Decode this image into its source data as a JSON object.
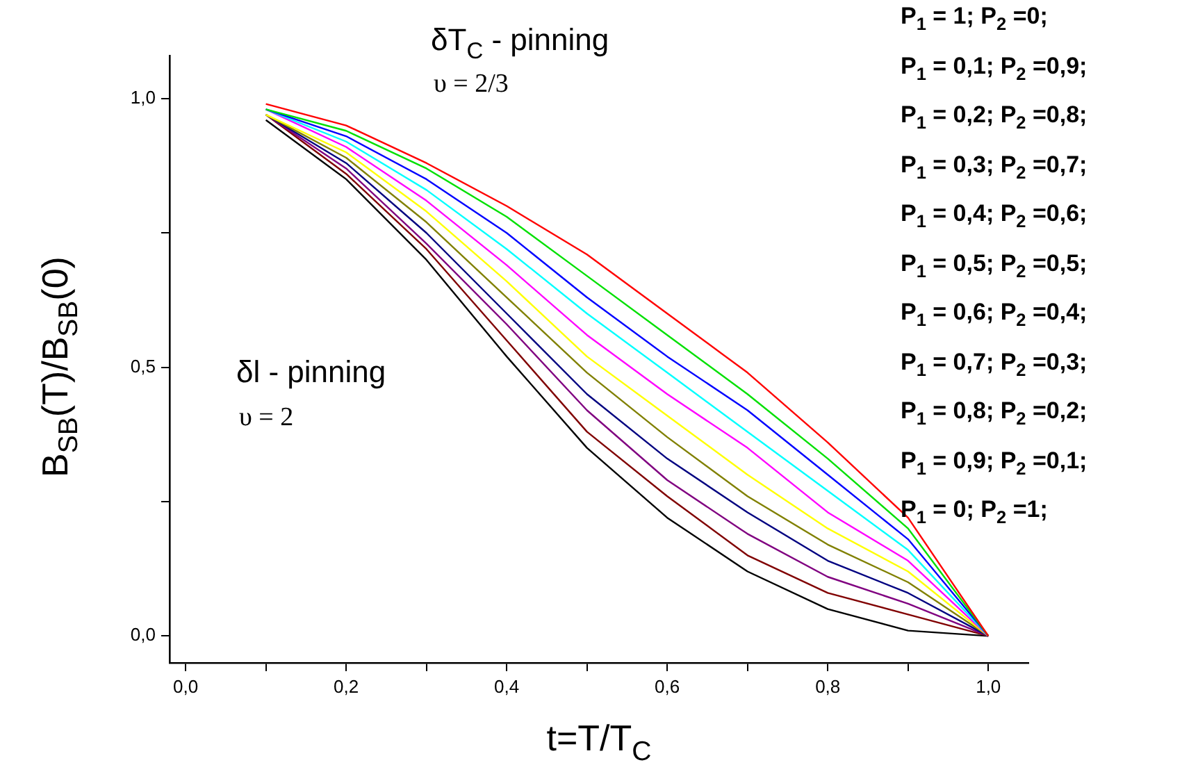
{
  "chart_data": {
    "type": "line",
    "xlabel": "t=T/T$_{C}$",
    "ylabel": "B$_{SB}$(T)/B$_{SB}$(0)",
    "x": [
      0.1,
      0.2,
      0.3,
      0.4,
      0.5,
      0.6,
      0.7,
      0.8,
      0.9,
      1.0
    ],
    "xlim": [
      -0.02,
      1.05
    ],
    "ylim": [
      -0.05,
      1.08
    ],
    "xticks": [
      {
        "value": 0,
        "label": "0,0"
      },
      {
        "value": 0.1,
        "label": null
      },
      {
        "value": 0.2,
        "label": "0,2"
      },
      {
        "value": 0.3,
        "label": null
      },
      {
        "value": 0.4,
        "label": "0,4"
      },
      {
        "value": 0.5,
        "label": null
      },
      {
        "value": 0.6,
        "label": "0,6"
      },
      {
        "value": 0.7,
        "label": null
      },
      {
        "value": 0.8,
        "label": "0,8"
      },
      {
        "value": 0.9,
        "label": null
      },
      {
        "value": 1.0,
        "label": "1,0"
      }
    ],
    "yticks": [
      {
        "value": 0,
        "label": "0,0"
      },
      {
        "value": 0.25,
        "label": null
      },
      {
        "value": 0.5,
        "label": "0,5"
      },
      {
        "value": 0.75,
        "label": null
      },
      {
        "value": 1.0,
        "label": "1,0"
      }
    ],
    "marker": "none",
    "line_style": "solid",
    "series": [
      {
        "color": "#ff0000",
        "values": [
          0.99,
          0.95,
          0.88,
          0.8,
          0.71,
          0.6,
          0.49,
          0.36,
          0.22,
          0
        ]
      },
      {
        "color": "#00e000",
        "values": [
          0.98,
          0.94,
          0.87,
          0.78,
          0.67,
          0.56,
          0.45,
          0.33,
          0.2,
          0
        ]
      },
      {
        "color": "#0000ff",
        "values": [
          0.98,
          0.93,
          0.85,
          0.75,
          0.63,
          0.52,
          0.42,
          0.3,
          0.18,
          0
        ]
      },
      {
        "color": "#00ffff",
        "values": [
          0.98,
          0.92,
          0.83,
          0.72,
          0.6,
          0.49,
          0.38,
          0.27,
          0.16,
          0
        ]
      },
      {
        "color": "#ff00ff",
        "values": [
          0.98,
          0.91,
          0.81,
          0.69,
          0.56,
          0.45,
          0.35,
          0.23,
          0.14,
          0
        ]
      },
      {
        "color": "#ffff00",
        "values": [
          0.97,
          0.9,
          0.79,
          0.66,
          0.52,
          0.41,
          0.3,
          0.2,
          0.12,
          0
        ]
      },
      {
        "color": "#808000",
        "values": [
          0.97,
          0.89,
          0.77,
          0.63,
          0.49,
          0.37,
          0.26,
          0.17,
          0.1,
          0
        ]
      },
      {
        "color": "#000080",
        "values": [
          0.97,
          0.88,
          0.75,
          0.6,
          0.45,
          0.33,
          0.23,
          0.14,
          0.08,
          0
        ]
      },
      {
        "color": "#800080",
        "values": [
          0.97,
          0.87,
          0.73,
          0.58,
          0.42,
          0.29,
          0.19,
          0.11,
          0.06,
          0
        ]
      },
      {
        "color": "#800000",
        "values": [
          0.97,
          0.86,
          0.72,
          0.55,
          0.38,
          0.26,
          0.15,
          0.08,
          0.04,
          0
        ]
      },
      {
        "color": "#000000",
        "values": [
          0.96,
          0.85,
          0.7,
          0.52,
          0.35,
          0.22,
          0.12,
          0.05,
          0.01,
          0
        ]
      }
    ],
    "annotations": [
      "δT$_{C}$  - pinning",
      "υ = 2/3",
      "δl -  pinning",
      "υ = 2",
      "P$_{1}$  = 1; P$_{2}$ =0;",
      "P$_{1}$  = 0,1; P$_{2}$ =0,9;",
      "P$_{1}$  = 0,2; P$_{2}$ =0,8;",
      "P$_{1}$  = 0,3; P$_{2}$ =0,7;",
      "P$_{1}$  = 0,4; P$_{2}$ =0,6;",
      "P$_{1}$  = 0,5; P$_{2}$ =0,5;",
      "P$_{1}$  = 0,6; P$_{2}$ =0,4;",
      "P$_{1}$  = 0,7; P$_{2}$ =0,3;",
      "P$_{1}$  = 0,8; P$_{2}$ =0,2;",
      "P$_{1}$  = 0,9; P$_{2}$ =0,1;",
      "P$_{1}$  = 0; P$_{2}$ =1;"
    ]
  }
}
